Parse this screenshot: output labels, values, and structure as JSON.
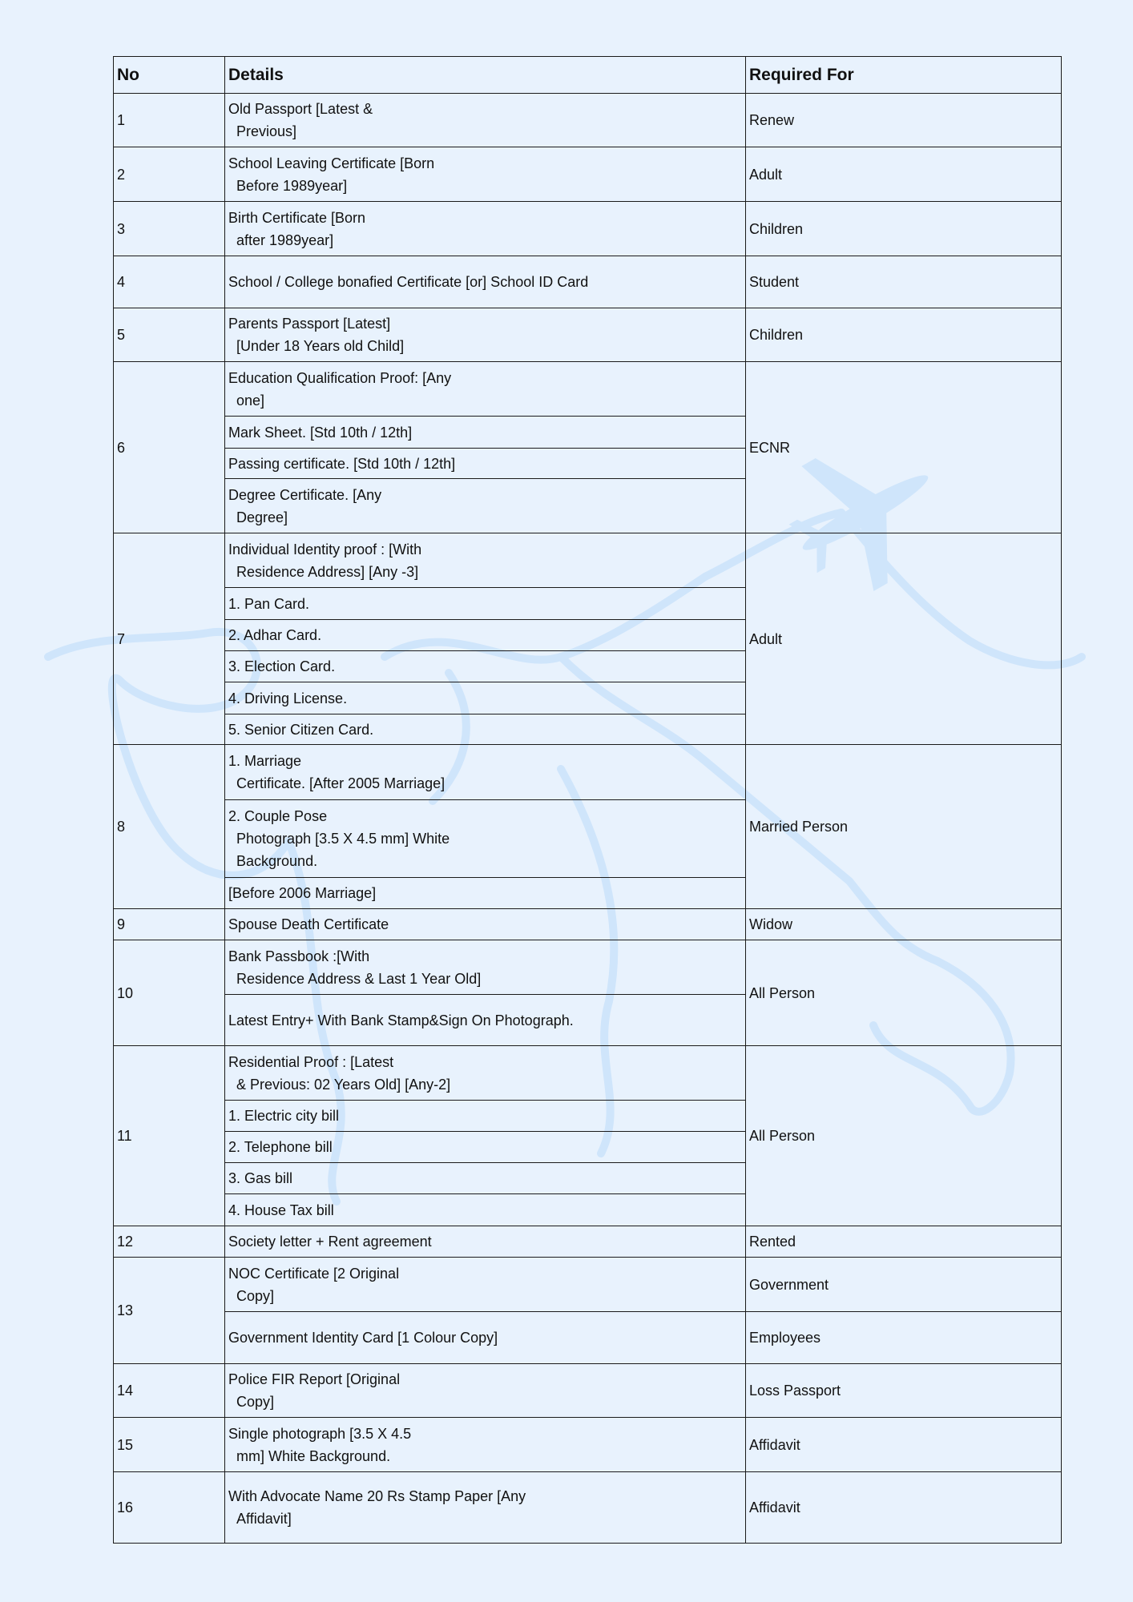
{
  "header": {
    "no": "No",
    "details": "Details",
    "required_for": "Required For"
  },
  "rows": [
    {
      "no": "1",
      "details": [
        "Old Passport [Latest &\n  Previous]"
      ],
      "required": [
        "Renew"
      ]
    },
    {
      "no": "2",
      "details": [
        "School Leaving Certificate [Born\n  Before 1989year]"
      ],
      "required": [
        "Adult"
      ]
    },
    {
      "no": "3",
      "details": [
        "Birth Certificate [Born\n  after 1989year]"
      ],
      "required": [
        "Children"
      ]
    },
    {
      "no": "4",
      "details": [
        "School / College bonafied Certificate [or] School ID Card"
      ],
      "required": [
        "Student"
      ]
    },
    {
      "no": "5",
      "details": [
        "Parents Passport [Latest]\n  [Under 18 Years old Child]"
      ],
      "required": [
        "Children"
      ]
    },
    {
      "no": "6",
      "details": [
        "Education Qualification Proof: [Any\n  one]",
        "Mark Sheet. [Std 10th / 12th]",
        "Passing certificate. [Std 10th / 12th]",
        "Degree Certificate. [Any\n  Degree]"
      ],
      "required": [
        "ECNR"
      ]
    },
    {
      "no": "7",
      "details": [
        "Individual Identity proof : [With\n  Residence Address] [Any -3]",
        "1. Pan Card.",
        "2. Adhar Card.",
        "3. Election Card.",
        "4. Driving License.",
        "5. Senior Citizen Card."
      ],
      "required": [
        "Adult"
      ]
    },
    {
      "no": "8",
      "details": [
        "1. Marriage\n  Certificate. [After 2005 Marriage]",
        "2. Couple Pose\n  Photograph [3.5 X 4.5 mm] White\n  Background.",
        "[Before 2006 Marriage]"
      ],
      "required": [
        "Married Person"
      ]
    },
    {
      "no": "9",
      "details": [
        "Spouse Death Certificate"
      ],
      "required": [
        "Widow"
      ]
    },
    {
      "no": "10",
      "details": [
        "Bank Passbook :[With\n  Residence Address & Last 1 Year Old]",
        "Latest Entry+ With Bank Stamp&Sign On Photograph."
      ],
      "required": [
        "All Person"
      ]
    },
    {
      "no": "11",
      "details": [
        "Residential Proof : [Latest\n  & Previous: 02 Years Old] [Any-2]",
        "1. Electric city bill",
        "2. Telephone bill",
        "3. Gas bill",
        "4. House Tax bill"
      ],
      "required": [
        "All Person"
      ]
    },
    {
      "no": "12",
      "details": [
        "Society letter + Rent agreement"
      ],
      "required": [
        "Rented"
      ]
    },
    {
      "no": "13",
      "details": [
        "NOC Certificate [2 Original\n  Copy]",
        "Government Identity Card [1 Colour Copy]"
      ],
      "required": [
        "Government",
        "Employees"
      ]
    },
    {
      "no": "14",
      "details": [
        "Police FIR Report [Original\n  Copy]"
      ],
      "required": [
        "Loss Passport"
      ]
    },
    {
      "no": "15",
      "details": [
        "Single photograph [3.5 X 4.5\n  mm] White Background."
      ],
      "required": [
        "Affidavit"
      ]
    },
    {
      "no": "16",
      "details": [
        "With Advocate Name 20 Rs Stamp Paper [Any\n  Affidavit]"
      ],
      "required": [
        "Affidavit"
      ]
    }
  ],
  "colors": {
    "background": "#e8f2fd",
    "border": "#1a1a1a",
    "decoration": "#cfe5fb"
  }
}
